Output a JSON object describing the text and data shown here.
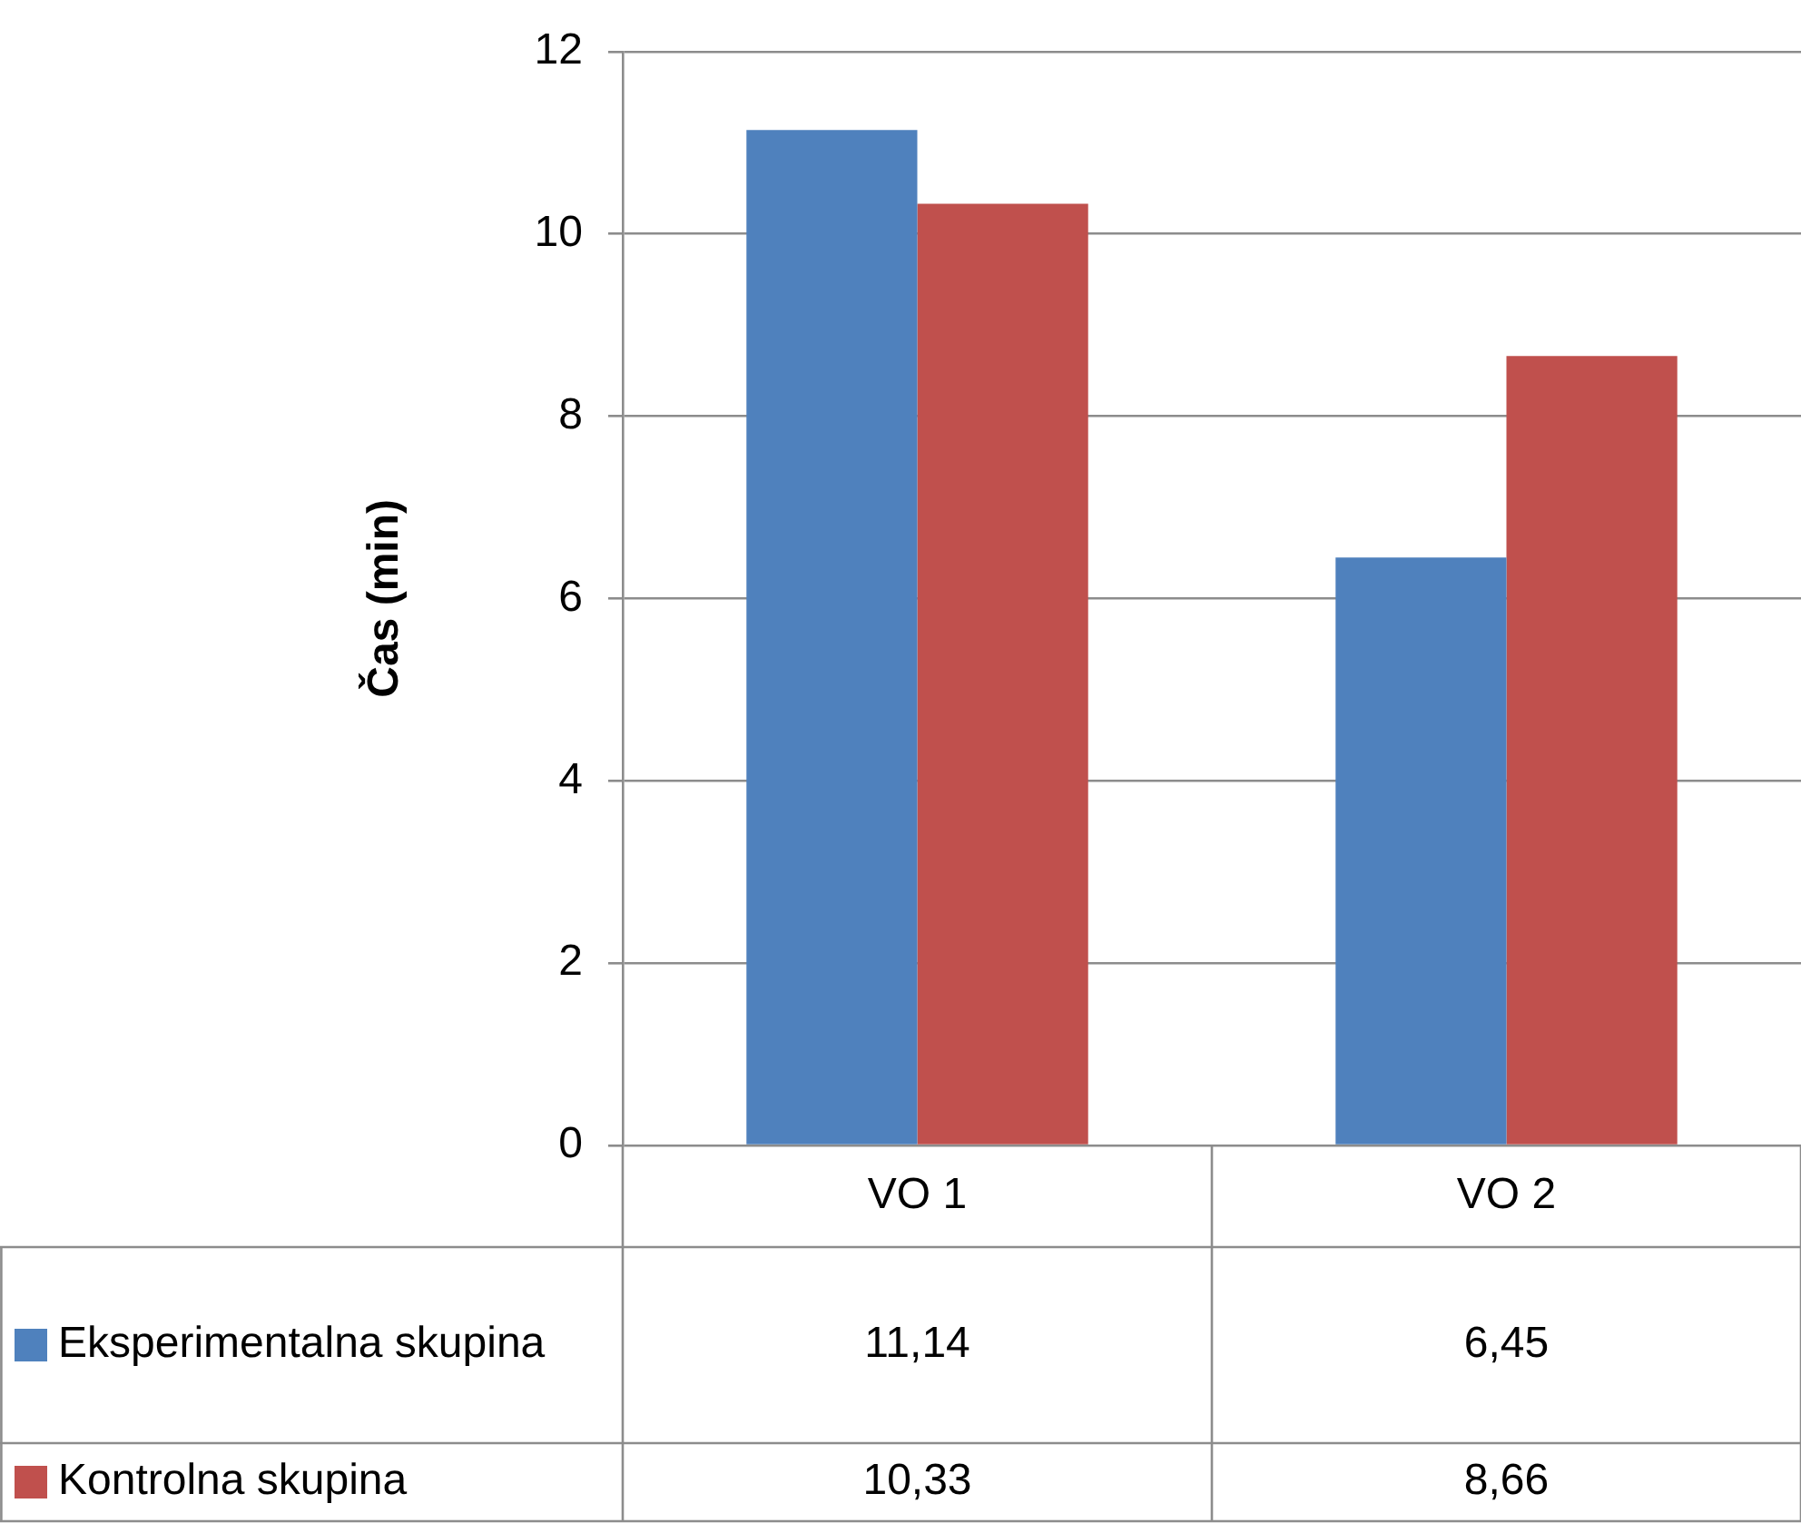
{
  "chart_data": {
    "type": "bar",
    "ylabel": "Čas (min)",
    "categories": [
      "VO 1",
      "VO 2"
    ],
    "series": [
      {
        "name": "Eksperimentalna skupina",
        "color": "#4f81bd",
        "values": [
          11.14,
          6.45
        ],
        "value_labels": [
          "11,14",
          "6,45"
        ]
      },
      {
        "name": "Kontrolna skupina",
        "color": "#c0504d",
        "values": [
          10.33,
          8.66
        ],
        "value_labels": [
          "10,33",
          "8,66"
        ]
      }
    ],
    "ylim": [
      0,
      12
    ],
    "yticks": [
      0,
      2,
      4,
      6,
      8,
      10,
      12
    ],
    "grid": "y",
    "legend": "bottom left"
  }
}
